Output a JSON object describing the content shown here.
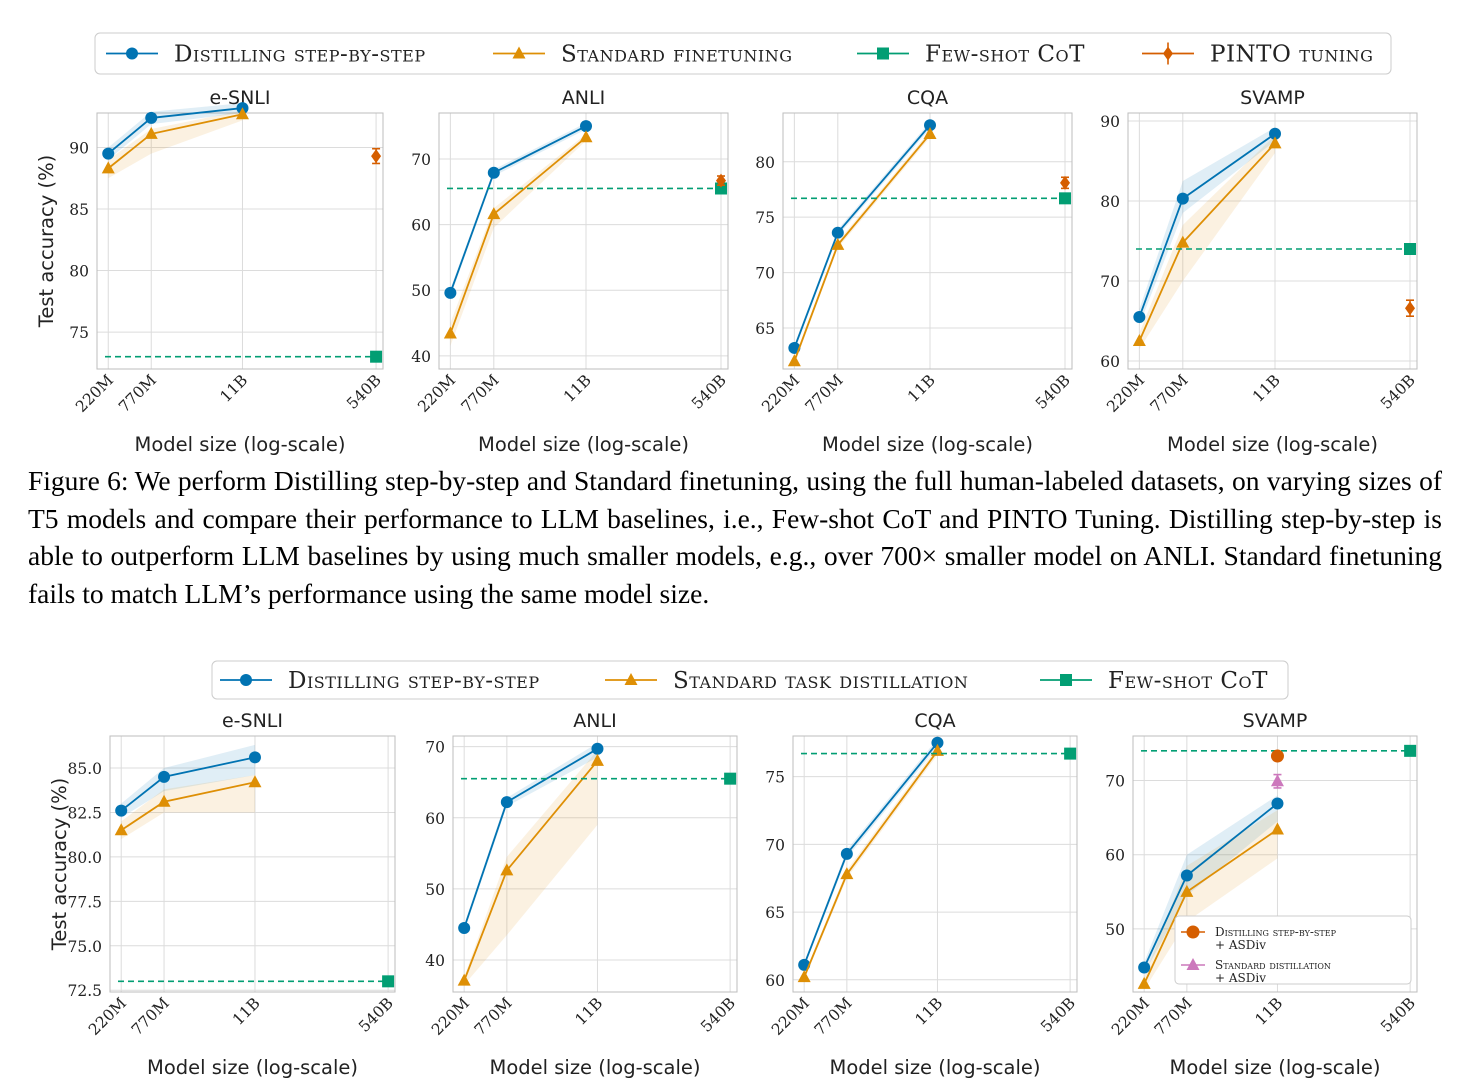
{
  "figure6": {
    "label": "Figure 6:",
    "caption": "We perform Distilling step-by-step and Standard finetuning, using the full human-labeled datasets, on varying sizes of T5 models and compare their performance to LLM baselines, i.e., Few-shot CoT and PINTO Tuning. Distilling step-by-step is able to outperform LLM baselines by using much smaller models, e.g., over 700× smaller model on ANLI. Standard finetuning fails to match LLM’s performance using the same model size."
  },
  "colors": {
    "distilling": "#0173b2",
    "standard": "#de8f05",
    "fewshot": "#029e73",
    "pinto": "#d55e00",
    "asdiv_distilling": "#d55e00",
    "asdiv_standard": "#cc78bc"
  },
  "chart_data": [
    {
      "type": "line",
      "group": "top",
      "title": "e-SNLI",
      "xlabel": "Model size (log-scale)",
      "ylabel": "Test accuracy (%)",
      "x_scale": "log",
      "categories": [
        "220M",
        "770M",
        "11B",
        "540B"
      ],
      "ylim": [
        72,
        92.8
      ],
      "yticks": [
        "75",
        "80",
        "85",
        "90"
      ],
      "series": [
        {
          "name": "Distilling step-by-step",
          "x": [
            "220M",
            "770M",
            "11B"
          ],
          "values": [
            89.5,
            92.4,
            93.2
          ],
          "band": [
            [
              89.0,
              90.0
            ],
            [
              91.9,
              92.9
            ],
            [
              92.8,
              93.6
            ]
          ]
        },
        {
          "name": "Standard finetuning",
          "x": [
            "220M",
            "770M",
            "11B"
          ],
          "values": [
            88.3,
            91.1,
            92.7
          ],
          "band": [
            [
              87.5,
              89.0
            ],
            [
              89.5,
              91.5
            ],
            [
              92.2,
              93.0
            ]
          ]
        },
        {
          "name": "Few-shot CoT",
          "x": [
            "540B"
          ],
          "values": [
            73.0
          ],
          "hline": true
        },
        {
          "name": "PINTO tuning",
          "x": [
            "540B"
          ],
          "values": [
            89.3
          ],
          "err": [
            0.6
          ]
        }
      ]
    },
    {
      "type": "line",
      "group": "top",
      "title": "ANLI",
      "xlabel": "Model size (log-scale)",
      "categories": [
        "220M",
        "770M",
        "11B",
        "540B"
      ],
      "ylim": [
        38,
        77
      ],
      "yticks": [
        "40",
        "50",
        "60",
        "70"
      ],
      "series": [
        {
          "name": "Distilling step-by-step",
          "x": [
            "220M",
            "770M",
            "11B"
          ],
          "values": [
            49.6,
            67.9,
            75.0
          ],
          "band": [
            [
              49.0,
              50.2
            ],
            [
              67.4,
              68.4
            ],
            [
              74.5,
              75.5
            ]
          ]
        },
        {
          "name": "Standard finetuning",
          "x": [
            "220M",
            "770M",
            "11B"
          ],
          "values": [
            43.4,
            61.6,
            73.3
          ],
          "band": [
            [
              41.5,
              45.0
            ],
            [
              59.5,
              62.5
            ],
            [
              72.8,
              73.8
            ]
          ]
        },
        {
          "name": "Few-shot CoT",
          "x": [
            "540B"
          ],
          "values": [
            65.5
          ],
          "hline": true
        },
        {
          "name": "PINTO tuning",
          "x": [
            "540B"
          ],
          "values": [
            66.7
          ],
          "err": [
            0.7
          ]
        }
      ]
    },
    {
      "type": "line",
      "group": "top",
      "title": "CQA",
      "xlabel": "Model size (log-scale)",
      "categories": [
        "220M",
        "770M",
        "11B",
        "540B"
      ],
      "ylim": [
        61.3,
        84.4
      ],
      "yticks": [
        "65",
        "70",
        "75",
        "80"
      ],
      "series": [
        {
          "name": "Distilling step-by-step",
          "x": [
            "220M",
            "770M",
            "11B"
          ],
          "values": [
            63.2,
            73.6,
            83.3
          ],
          "band": [
            [
              62.9,
              63.5
            ],
            [
              73.3,
              73.9
            ],
            [
              83.0,
              83.6
            ]
          ]
        },
        {
          "name": "Standard finetuning",
          "x": [
            "220M",
            "770M",
            "11B"
          ],
          "values": [
            62.0,
            72.5,
            82.5
          ],
          "band": [
            [
              61.7,
              62.3
            ],
            [
              72.2,
              72.8
            ],
            [
              82.2,
              82.8
            ]
          ]
        },
        {
          "name": "Few-shot CoT",
          "x": [
            "540B"
          ],
          "values": [
            76.7
          ],
          "hline": true
        },
        {
          "name": "PINTO tuning",
          "x": [
            "540B"
          ],
          "values": [
            78.1
          ],
          "err": [
            0.5
          ]
        }
      ]
    },
    {
      "type": "line",
      "group": "top",
      "title": "SVAMP",
      "xlabel": "Model size (log-scale)",
      "categories": [
        "220M",
        "770M",
        "11B",
        "540B"
      ],
      "ylim": [
        59,
        91
      ],
      "yticks": [
        "60",
        "70",
        "80",
        "90"
      ],
      "series": [
        {
          "name": "Distilling step-by-step",
          "x": [
            "220M",
            "770M",
            "11B"
          ],
          "values": [
            65.5,
            80.3,
            88.4
          ],
          "band": [
            [
              64.5,
              66.5
            ],
            [
              78.5,
              82.5
            ],
            [
              87.5,
              89.2
            ]
          ]
        },
        {
          "name": "Standard finetuning",
          "x": [
            "220M",
            "770M",
            "11B"
          ],
          "values": [
            62.5,
            74.8,
            87.2
          ],
          "band": [
            [
              61.5,
              63.5
            ],
            [
              70.0,
              77.0
            ],
            [
              86.0,
              88.2
            ]
          ]
        },
        {
          "name": "Few-shot CoT",
          "x": [
            "540B"
          ],
          "values": [
            74.0
          ],
          "hline": true
        },
        {
          "name": "PINTO tuning",
          "x": [
            "540B"
          ],
          "values": [
            66.6
          ],
          "err": [
            1.0
          ]
        }
      ]
    },
    {
      "type": "line",
      "group": "bottom",
      "title": "e-SNLI",
      "xlabel": "Model size (log-scale)",
      "ylabel": "Test accuracy (%)",
      "x_scale": "log",
      "categories": [
        "220M",
        "770M",
        "11B",
        "540B"
      ],
      "ylim": [
        72.4,
        86.8
      ],
      "yticks": [
        "72.5",
        "75.0",
        "77.5",
        "80.0",
        "82.5",
        "85.0"
      ],
      "series": [
        {
          "name": "Distilling step-by-step",
          "x": [
            "220M",
            "770M",
            "11B"
          ],
          "values": [
            82.6,
            84.5,
            85.6
          ],
          "band": [
            [
              82.2,
              83.0
            ],
            [
              83.7,
              85.0
            ],
            [
              84.6,
              86.3
            ]
          ]
        },
        {
          "name": "Standard task distillation",
          "x": [
            "220M",
            "770M",
            "11B"
          ],
          "values": [
            81.5,
            83.1,
            84.2
          ],
          "band": [
            [
              81.0,
              82.0
            ],
            [
              82.5,
              83.8
            ],
            [
              82.5,
              84.6
            ]
          ]
        },
        {
          "name": "Few-shot CoT",
          "x": [
            "540B"
          ],
          "values": [
            73.0
          ],
          "hline": true
        }
      ]
    },
    {
      "type": "line",
      "group": "bottom",
      "title": "ANLI",
      "xlabel": "Model size (log-scale)",
      "categories": [
        "220M",
        "770M",
        "11B",
        "540B"
      ],
      "ylim": [
        35.5,
        71.5
      ],
      "yticks": [
        "40",
        "50",
        "60",
        "70"
      ],
      "series": [
        {
          "name": "Distilling step-by-step",
          "x": [
            "220M",
            "770M",
            "11B"
          ],
          "values": [
            44.5,
            62.2,
            69.7
          ],
          "band": [
            [
              44.0,
              45.0
            ],
            [
              61.6,
              62.8
            ],
            [
              68.5,
              70.5
            ]
          ]
        },
        {
          "name": "Standard task distillation",
          "x": [
            "220M",
            "770M",
            "11B"
          ],
          "values": [
            37.1,
            52.6,
            68.0
          ],
          "band": [
            [
              36.5,
              37.6
            ],
            [
              43.5,
              54.5
            ],
            [
              59.0,
              69.5
            ]
          ]
        },
        {
          "name": "Few-shot CoT",
          "x": [
            "540B"
          ],
          "values": [
            65.5
          ],
          "hline": true
        }
      ]
    },
    {
      "type": "line",
      "group": "bottom",
      "title": "CQA",
      "xlabel": "Model size (log-scale)",
      "categories": [
        "220M",
        "770M",
        "11B",
        "540B"
      ],
      "ylim": [
        59.1,
        78.0
      ],
      "yticks": [
        "60",
        "65",
        "70",
        "75"
      ],
      "series": [
        {
          "name": "Distilling step-by-step",
          "x": [
            "220M",
            "770M",
            "11B"
          ],
          "values": [
            61.1,
            69.3,
            77.5
          ],
          "band": [
            [
              60.9,
              61.3
            ],
            [
              69.0,
              69.6
            ],
            [
              77.2,
              77.8
            ]
          ]
        },
        {
          "name": "Standard task distillation",
          "x": [
            "220M",
            "770M",
            "11B"
          ],
          "values": [
            60.2,
            67.8,
            76.9
          ],
          "band": [
            [
              60.0,
              60.4
            ],
            [
              67.5,
              68.1
            ],
            [
              76.6,
              77.2
            ]
          ]
        },
        {
          "name": "Few-shot CoT",
          "x": [
            "540B"
          ],
          "values": [
            76.7
          ],
          "hline": true
        }
      ]
    },
    {
      "type": "line",
      "group": "bottom",
      "title": "SVAMP",
      "xlabel": "Model size (log-scale)",
      "categories": [
        "220M",
        "770M",
        "11B",
        "540B"
      ],
      "ylim": [
        41.5,
        76.0
      ],
      "yticks": [
        "50",
        "60",
        "70"
      ],
      "series": [
        {
          "name": "Distilling step-by-step",
          "x": [
            "220M",
            "770M",
            "11B"
          ],
          "values": [
            44.8,
            57.2,
            66.9
          ],
          "band": [
            [
              44.0,
              45.5
            ],
            [
              54.5,
              60.0
            ],
            [
              64.5,
              68.0
            ]
          ]
        },
        {
          "name": "Standard task distillation",
          "x": [
            "220M",
            "770M",
            "11B"
          ],
          "values": [
            42.6,
            55.0,
            63.4
          ],
          "band": [
            [
              41.8,
              43.5
            ],
            [
              51.0,
              58.5
            ],
            [
              59.5,
              66.0
            ]
          ]
        },
        {
          "name": "Few-shot CoT",
          "x": [
            "540B"
          ],
          "values": [
            74.0
          ],
          "hline": true
        },
        {
          "name": "Distilling step-by-step + ASDiv",
          "x": [
            "11B"
          ],
          "values": [
            73.3
          ],
          "err": [
            0.3
          ]
        },
        {
          "name": "Standard distillation + ASDiv",
          "x": [
            "11B"
          ],
          "values": [
            69.9
          ],
          "err": [
            0.9
          ]
        }
      ],
      "inner_legend": [
        {
          "line1": "Distilling step-by-step",
          "line2": "+ ASDiv"
        },
        {
          "line1": "Standard distillation",
          "line2": "+ ASDiv"
        }
      ]
    }
  ],
  "legend_top": [
    "Distilling step-by-step",
    "Standard finetuning",
    "Few-shot CoT",
    "PINTO tuning"
  ],
  "legend_bottom": [
    "Distilling step-by-step",
    "Standard task distillation",
    "Few-shot CoT"
  ]
}
